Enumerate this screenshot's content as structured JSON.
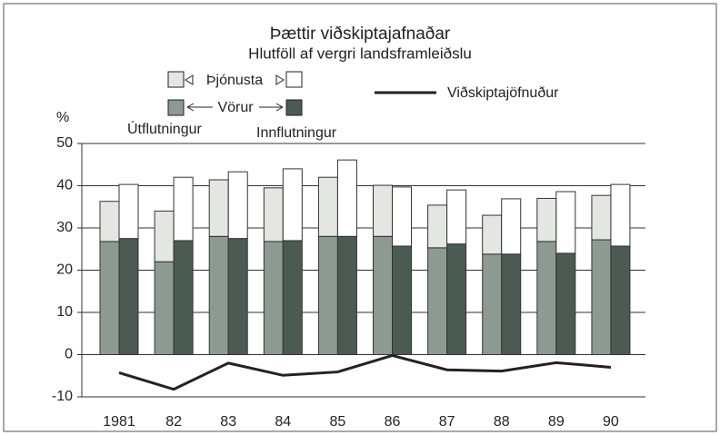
{
  "chart_data": {
    "type": "stacked-bar-line",
    "title": "Þættir viðskiptajafnaðar",
    "subtitle": "Hlutföll af vergri landsframleiðslu",
    "y_label": "%",
    "categories": [
      "1981",
      "82",
      "83",
      "84",
      "85",
      "86",
      "87",
      "88",
      "89",
      "90"
    ],
    "groups": [
      {
        "name": "Útflutningur",
        "series": [
          {
            "name": "Vörur",
            "color": "#8d9a92",
            "values": [
              26.8,
              22,
              28,
              26.8,
              28,
              28,
              25.3,
              23.8,
              26.8,
              27.2
            ]
          },
          {
            "name": "Þjónusta",
            "color": "#e4e6e2",
            "values": [
              9.5,
              12,
              13.4,
              12.7,
              14,
              12.1,
              10.1,
              9.2,
              10.2,
              10.5
            ]
          }
        ]
      },
      {
        "name": "Innflutningur",
        "series": [
          {
            "name": "Vörur",
            "color": "#4b5a52",
            "values": [
              27.5,
              27,
              27.5,
              27,
              28,
              25.7,
              26.2,
              23.8,
              24,
              25.7
            ]
          },
          {
            "name": "Þjónusta",
            "color": "#ffffff",
            "values": [
              12.8,
              15,
              15.8,
              17,
              18.1,
              14,
              12.8,
              13.1,
              14.6,
              14.6
            ]
          }
        ]
      }
    ],
    "line": {
      "name": "Viðskiptajöfnuður",
      "color": "#222222",
      "values": [
        -4.3,
        -8.2,
        -2,
        -4.9,
        -4.1,
        -0.2,
        -3.6,
        -3.9,
        -1.9,
        -3
      ]
    },
    "ylim": [
      -10,
      50
    ],
    "yticks": [
      -10,
      0,
      10,
      20,
      30,
      40,
      50
    ],
    "grid": true
  }
}
